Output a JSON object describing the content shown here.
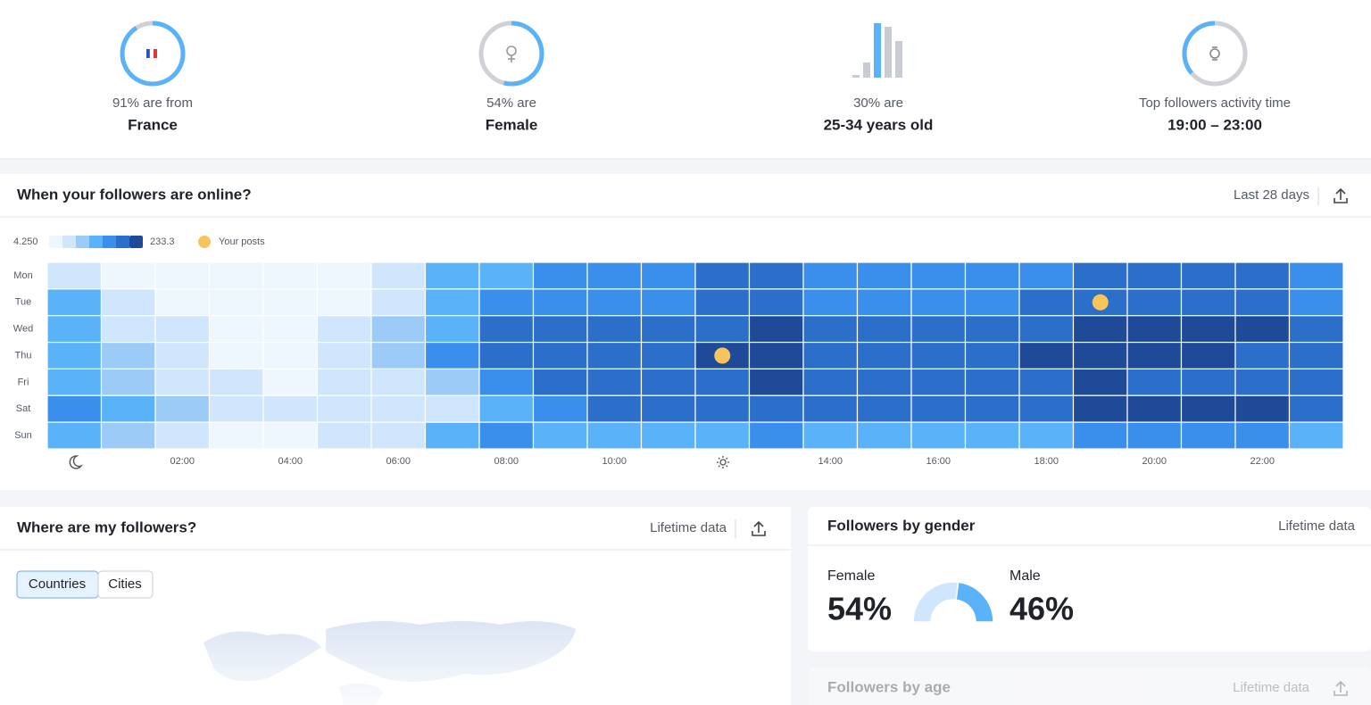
{
  "stats": [
    {
      "caption": "91% are from",
      "value": "France",
      "percent": 91
    },
    {
      "caption": "54% are",
      "value": "Female",
      "percent": 54
    },
    {
      "caption": "30% are",
      "value": "25-34 years old"
    },
    {
      "caption": "Top followers activity time",
      "value": "19:00 – 23:00"
    }
  ],
  "heatmap": {
    "title": "When your followers are online?",
    "period": "Last 28 days",
    "legend": {
      "min": {
        "value": 4.25,
        "label": "4.250"
      },
      "max": 233.3,
      "colors": [
        "#eef6fe",
        "#cfe6fc",
        "#9dcbf8",
        "#5ab3f8",
        "#3a8fed",
        "#2b6fca",
        "#1e4a97"
      ],
      "posts_label": "Your posts",
      "posts_color": "#f7c55c"
    },
    "days": [
      "Mon",
      "Tue",
      "Wed",
      "Thu",
      "Fri",
      "Sat",
      "Sun"
    ],
    "hours": [
      null,
      null,
      "02:00",
      null,
      "04:00",
      null,
      "06:00",
      null,
      "08:00",
      null,
      "10:00",
      null,
      null,
      null,
      "14:00",
      null,
      "16:00",
      null,
      "18:00",
      null,
      "20:00",
      null,
      "22:00",
      null
    ],
    "values": [
      [
        53,
        20,
        20,
        20,
        20,
        20,
        53,
        118,
        118,
        151,
        151,
        151,
        184,
        184,
        151,
        151,
        151,
        151,
        151,
        184,
        184,
        184,
        184,
        151
      ],
      [
        118,
        53,
        20,
        20,
        20,
        20,
        53,
        118,
        151,
        151,
        151,
        151,
        184,
        184,
        151,
        151,
        151,
        151,
        184,
        184,
        184,
        184,
        184,
        151
      ],
      [
        118,
        53,
        53,
        20,
        20,
        53,
        86,
        118,
        184,
        184,
        184,
        184,
        184,
        217,
        184,
        184,
        184,
        184,
        184,
        217,
        217,
        217,
        217,
        184
      ],
      [
        118,
        86,
        53,
        20,
        20,
        53,
        86,
        151,
        184,
        184,
        184,
        184,
        217,
        217,
        184,
        184,
        184,
        184,
        217,
        217,
        217,
        217,
        184,
        184
      ],
      [
        118,
        86,
        53,
        53,
        20,
        53,
        53,
        86,
        151,
        184,
        184,
        184,
        184,
        217,
        184,
        184,
        184,
        184,
        184,
        217,
        184,
        184,
        184,
        184
      ],
      [
        151,
        118,
        86,
        53,
        53,
        53,
        53,
        53,
        118,
        151,
        184,
        184,
        184,
        184,
        184,
        184,
        184,
        184,
        184,
        217,
        217,
        217,
        217,
        184
      ],
      [
        118,
        86,
        53,
        20,
        20,
        53,
        53,
        118,
        151,
        118,
        118,
        118,
        118,
        151,
        118,
        118,
        118,
        118,
        118,
        151,
        151,
        151,
        151,
        118
      ]
    ],
    "posts": [
      {
        "day": "Tue",
        "hour": 19
      },
      {
        "day": "Thu",
        "hour": 12
      }
    ]
  },
  "location": {
    "title": "Where are my followers?",
    "period": "Lifetime data",
    "tabs": [
      "Countries",
      "Cities"
    ]
  },
  "gender": {
    "title": "Followers by gender",
    "period": "Lifetime data",
    "female": {
      "label": "Female",
      "value": 54,
      "value_label": "54%",
      "color": "#cfe6fc"
    },
    "male": {
      "label": "Male",
      "value": 46,
      "value_label": "46%",
      "color": "#5ab3f8"
    }
  },
  "age": {
    "title": "Followers by age",
    "period": "Lifetime data"
  }
}
